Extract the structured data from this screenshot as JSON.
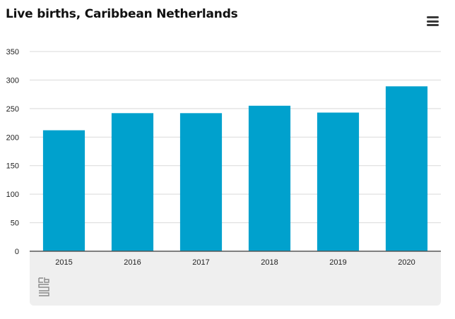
{
  "title": "Live births, Caribbean Netherlands",
  "icons": {
    "menu": "hamburger-menu-icon",
    "logo": "cbs-logo-icon"
  },
  "colors": {
    "bar": "#00a1cd",
    "grid": "#d9d9d9",
    "axis": "#555555",
    "footer": "#efefef"
  },
  "chart_data": {
    "type": "bar",
    "title": "Live births, Caribbean Netherlands",
    "xlabel": "",
    "ylabel": "",
    "categories": [
      "2015",
      "2016",
      "2017",
      "2018",
      "2019",
      "2020"
    ],
    "values": [
      212,
      242,
      242,
      255,
      243,
      289
    ],
    "ylim": [
      0,
      350
    ],
    "yticks": [
      0,
      50,
      100,
      150,
      200,
      250,
      300,
      350
    ],
    "grid": true,
    "legend": "none"
  }
}
